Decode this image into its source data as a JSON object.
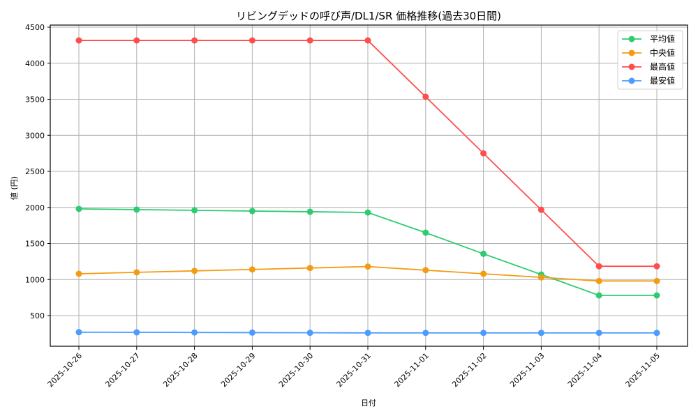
{
  "chart_data": {
    "type": "line",
    "title": "リビングデッドの呼び声/DL1/SR 価格推移(過去30日間)",
    "xlabel": "日付",
    "ylabel": "値 (円)",
    "ylim": [
      0,
      4500
    ],
    "yticks": [
      500,
      1000,
      1500,
      2000,
      2500,
      3000,
      3500,
      4000,
      4500
    ],
    "grid": true,
    "legend_position": "upper right",
    "categories": [
      "2025-10-26",
      "2025-10-27",
      "2025-10-28",
      "2025-10-29",
      "2025-10-30",
      "2025-10-31",
      "2025-11-01",
      "2025-11-02",
      "2025-11-03",
      "2025-11-04",
      "2025-11-05"
    ],
    "series": [
      {
        "name": "平均値",
        "color": "#2ecc71",
        "values": [
          1980,
          1970,
          1960,
          1950,
          1940,
          1930,
          1650,
          1357,
          1070,
          780,
          780
        ]
      },
      {
        "name": "中央値",
        "color": "#f39c12",
        "values": [
          1080,
          1100,
          1120,
          1140,
          1160,
          1180,
          1130,
          1080,
          1030,
          980,
          980
        ]
      },
      {
        "name": "最高値",
        "color": "#ff4d4d",
        "values": [
          4316,
          4316,
          4316,
          4316,
          4316,
          4316,
          3534,
          2750,
          1967,
          1184,
          1184
        ]
      },
      {
        "name": "最安値",
        "color": "#4d9bff",
        "values": [
          270,
          268,
          266,
          264,
          262,
          260,
          260,
          260,
          260,
          260,
          260
        ]
      }
    ]
  }
}
